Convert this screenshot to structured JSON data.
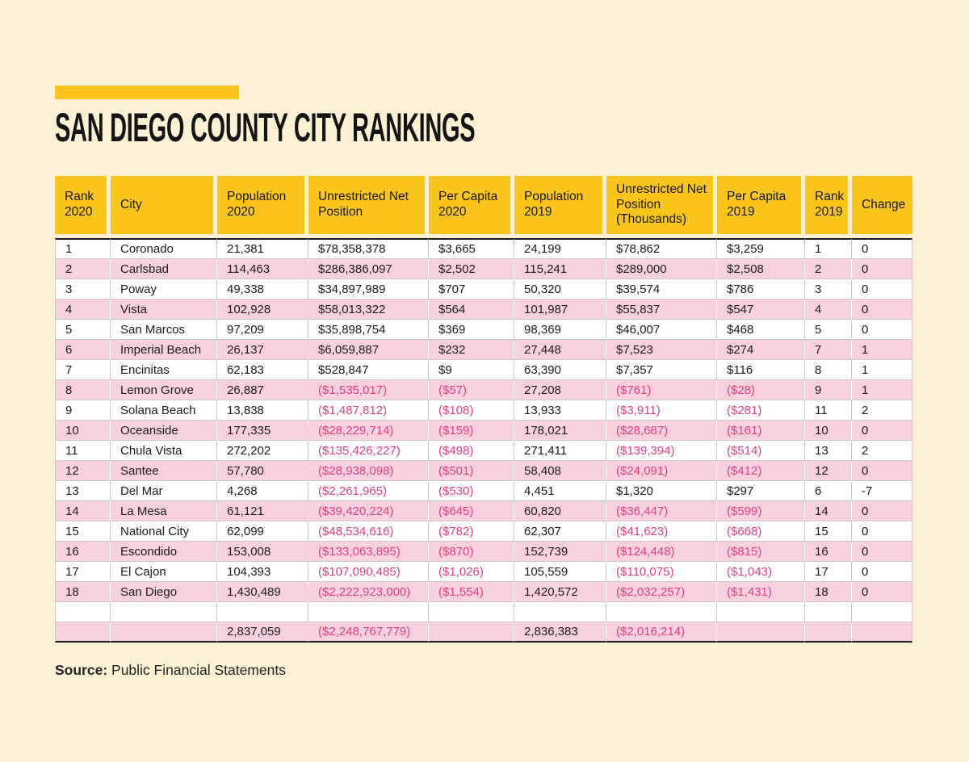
{
  "page": {
    "title": "SAN DIEGO COUNTY CITY RANKINGS",
    "source_label": "Source:",
    "source_text": " Public Financial Statements"
  },
  "colors": {
    "background_cream": "#fdf1d3",
    "accent_yellow": "#fbc51c",
    "row_pink": "#f8d0de",
    "negative_magenta": "#e23f85",
    "text_ink": "#1b1b1b",
    "grid_line": "#c9c9c9"
  },
  "chart_data": {
    "type": "table",
    "title": "SAN DIEGO COUNTY CITY RANKINGS",
    "columns": [
      "Rank 2020",
      "City",
      "Population 2020",
      "Unrestricted Net Position",
      "Per Capita 2020",
      "Population 2019",
      "Unrestricted Net Position (Thousands)",
      "Per Capita 2019",
      "Rank 2019",
      "Change"
    ],
    "rows": [
      [
        "1",
        "Coronado",
        "21,381",
        "$78,358,378",
        "$3,665",
        "24,199",
        "$78,862",
        "$3,259",
        "1",
        "0"
      ],
      [
        "2",
        "Carlsbad",
        "114,463",
        "$286,386,097",
        "$2,502",
        "115,241",
        "$289,000",
        "$2,508",
        "2",
        "0"
      ],
      [
        "3",
        "Poway",
        "49,338",
        "$34,897,989",
        "$707",
        "50,320",
        "$39,574",
        "$786",
        "3",
        "0"
      ],
      [
        "4",
        "Vista",
        "102,928",
        "$58,013,322",
        "$564",
        "101,987",
        "$55,837",
        "$547",
        "4",
        "0"
      ],
      [
        "5",
        "San Marcos",
        "97,209",
        "$35,898,754",
        "$369",
        "98,369",
        "$46,007",
        "$468",
        "5",
        "0"
      ],
      [
        "6",
        "Imperial Beach",
        "26,137",
        "$6,059,887",
        "$232",
        "27,448",
        "$7,523",
        "$274",
        "7",
        "1"
      ],
      [
        "7",
        "Encinitas",
        "62,183",
        "$528,847",
        "$9",
        "63,390",
        "$7,357",
        "$116",
        "8",
        "1"
      ],
      [
        "8",
        "Lemon Grove",
        "26,887",
        "($1,535,017)",
        "($57)",
        "27,208",
        "($761)",
        "($28)",
        "9",
        "1"
      ],
      [
        "9",
        "Solana Beach",
        "13,838",
        "($1,487,812)",
        "($108)",
        "13,933",
        "($3,911)",
        "($281)",
        "11",
        "2"
      ],
      [
        "10",
        "Oceanside",
        "177,335",
        "($28,229,714)",
        "($159)",
        "178,021",
        "($28,687)",
        "($161)",
        "10",
        "0"
      ],
      [
        "11",
        "Chula Vista",
        "272,202",
        "($135,426,227)",
        "($498)",
        "271,411",
        "($139,394)",
        "($514)",
        "13",
        "2"
      ],
      [
        "12",
        "Santee",
        "57,780",
        "($28,938,098)",
        "($501)",
        "58,408",
        "($24,091)",
        "($412)",
        "12",
        "0"
      ],
      [
        "13",
        "Del Mar",
        "4,268",
        "($2,261,965)",
        "($530)",
        "4,451",
        "$1,320",
        "$297",
        "6",
        "-7"
      ],
      [
        "14",
        "La Mesa",
        "61,121",
        "($39,420,224)",
        "($645)",
        "60,820",
        "($36,447)",
        "($599)",
        "14",
        "0"
      ],
      [
        "15",
        "National City",
        "62,099",
        "($48,534,616)",
        "($782)",
        "62,307",
        "($41,623)",
        "($668)",
        "15",
        "0"
      ],
      [
        "16",
        "Escondido",
        "153,008",
        "($133,063,895)",
        "($870)",
        "152,739",
        "($124,448)",
        "($815)",
        "16",
        "0"
      ],
      [
        "17",
        "El Cajon",
        "104,393",
        "($107,090,485)",
        "($1,026)",
        "105,559",
        "($110,075)",
        "($1,043)",
        "17",
        "0"
      ],
      [
        "18",
        "San Diego",
        "1,430,489",
        "($2,222,923,000)",
        "($1,554)",
        "1,420,572",
        "($2,032,257)",
        "($1,431)",
        "18",
        "0"
      ]
    ],
    "empty_row": [
      "",
      "",
      "",
      "",
      "",
      "",
      "",
      "",
      "",
      ""
    ],
    "totals_row": [
      "",
      "",
      "2,837,059",
      "($2,248,767,779)",
      "",
      "2,836,383",
      "($2,016,214)",
      "",
      "",
      ""
    ]
  }
}
